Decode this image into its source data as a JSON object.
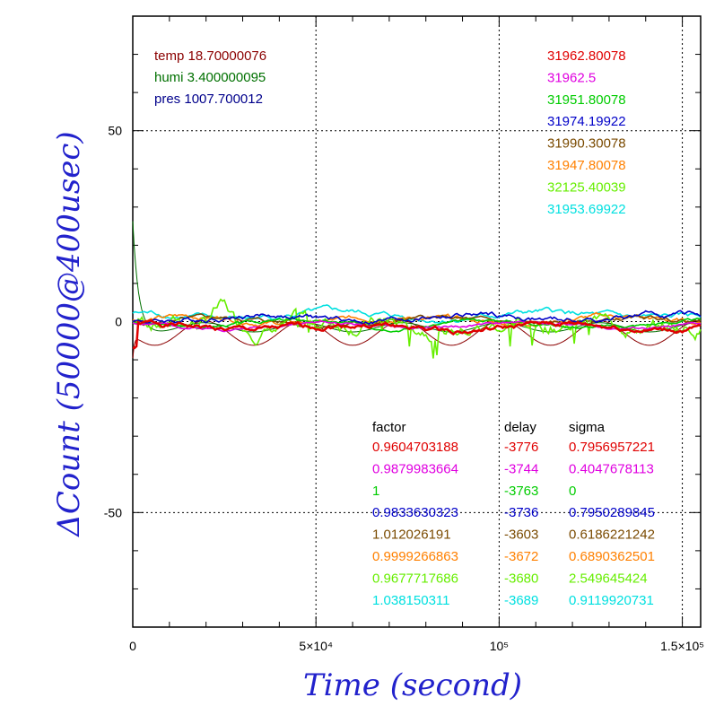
{
  "chart_data": {
    "type": "line",
    "xlabel": "Time (second)",
    "ylabel": "ΔCount (50000@400usec)",
    "xlim": [
      0,
      155000
    ],
    "ylim": [
      -80,
      80
    ],
    "grid": "dotted",
    "x_ticks": [
      {
        "value": 0,
        "label": "0"
      },
      {
        "value": 50000,
        "label": "5×10⁴"
      },
      {
        "value": 100000,
        "label": "10⁵"
      },
      {
        "value": 150000,
        "label": "1.5×10⁵"
      }
    ],
    "y_ticks": [
      {
        "value": 50,
        "label": "50"
      },
      {
        "value": 0,
        "label": "0"
      },
      {
        "value": -50,
        "label": "-50"
      }
    ],
    "env": [
      {
        "label": "temp",
        "value": "18.70000076",
        "color": "#8b0000"
      },
      {
        "label": "humi",
        "value": "3.400000095",
        "color": "#007000"
      },
      {
        "label": "pres",
        "value": "1007.700012",
        "color": "#00008b"
      }
    ],
    "means": [
      {
        "value": "31962.80078",
        "color": "#e00000"
      },
      {
        "value": "31962.5",
        "color": "#e000e0"
      },
      {
        "value": "31951.80078",
        "color": "#00cc00"
      },
      {
        "value": "31974.19922",
        "color": "#0000c8"
      },
      {
        "value": "31990.30078",
        "color": "#7a4a00"
      },
      {
        "value": "31947.80078",
        "color": "#ff8000"
      },
      {
        "value": "32125.40039",
        "color": "#66ee00"
      },
      {
        "value": "31953.69922",
        "color": "#00e0e0"
      }
    ],
    "table": {
      "headers": [
        "factor",
        "delay",
        "sigma"
      ],
      "rows": [
        {
          "factor": "0.9604703188",
          "delay": "-3776",
          "sigma": "0.7956957221",
          "color": "#e00000"
        },
        {
          "factor": "0.9879983664",
          "delay": "-3744",
          "sigma": "0.4047678113",
          "color": "#e000e0"
        },
        {
          "factor": "1",
          "delay": "-3763",
          "sigma": "0",
          "color": "#00cc00"
        },
        {
          "factor": "0.9833630323",
          "delay": "-3736",
          "sigma": "0.7950289845",
          "color": "#0000c8"
        },
        {
          "factor": "1.012026191",
          "delay": "-3603",
          "sigma": "0.6186221242",
          "color": "#7a4a00"
        },
        {
          "factor": "0.9999266863",
          "delay": "-3672",
          "sigma": "0.6890362501",
          "color": "#ff8000"
        },
        {
          "factor": "0.9677717686",
          "delay": "-3680",
          "sigma": "2.549645424",
          "color": "#66ee00"
        },
        {
          "factor": "1.038150311",
          "delay": "-3689",
          "sigma": "0.9119920731",
          "color": "#00e0e0"
        }
      ]
    },
    "series": [
      {
        "color": "#00e0e0",
        "amp": 1.0,
        "offset": 1.5,
        "seed": 8
      },
      {
        "color": "#ff8000",
        "amp": 0.9,
        "offset": 0.5,
        "seed": 6
      },
      {
        "color": "#7a4a00",
        "amp": 0.8,
        "offset": 0.0,
        "seed": 5
      },
      {
        "color": "#66ee00",
        "amp": 2.8,
        "offset": -0.5,
        "seed": 7
      },
      {
        "color": "#00cc00",
        "amp": 0.6,
        "offset": -0.5,
        "seed": 3
      },
      {
        "color": "#e000e0",
        "amp": 0.5,
        "offset": -1.0,
        "seed": 2
      },
      {
        "color": "#0000c8",
        "amp": 1.0,
        "offset": 1.0,
        "seed": 4
      },
      {
        "color": "#e00000",
        "amp": 1.0,
        "offset": -1.5,
        "seed": 1
      }
    ],
    "env_curves": [
      {
        "name": "temp",
        "color": "#8b0000",
        "amp": 3.2,
        "center": -3.0,
        "period": 27000
      },
      {
        "name": "humi",
        "color": "#007000",
        "amp": 1.2,
        "center": -1.5,
        "period": 27000
      }
    ]
  }
}
